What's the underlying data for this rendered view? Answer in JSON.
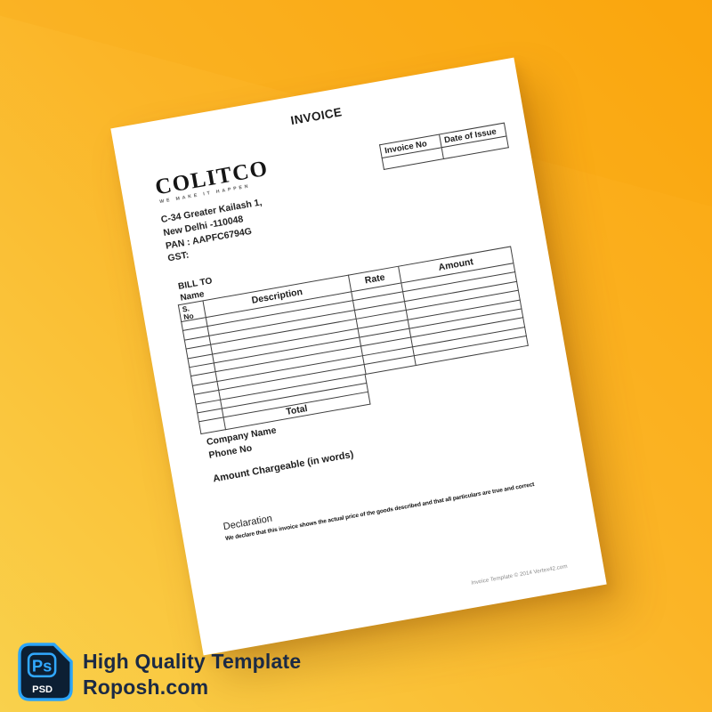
{
  "colors": {
    "background_orange": "#fba70f",
    "background_yellow": "#f9d14c",
    "paper": "#ffffff",
    "badge_bg": "#0c1f33",
    "badge_accent": "#31a8ff",
    "promo_text": "#1b2a45"
  },
  "invoice": {
    "title": "INVOICE",
    "meta": {
      "invoice_no": "Invoice No",
      "date_of_issue": "Date of Issue"
    },
    "logo": {
      "name": "COLITCO",
      "tagline": "WE MAKE IT HAPPEN"
    },
    "address_lines": [
      "C-34 Greater Kailash 1,",
      "New Delhi -110048",
      "PAN : AAPFC6794G",
      "GST:"
    ],
    "bill_to_label": "BILL TO",
    "bill_to_name_label": "Name",
    "table": {
      "sno_line1": "S.",
      "sno_line2": "No",
      "description": "Description",
      "rate": "Rate",
      "amount": "Amount",
      "total_label": "Total",
      "empty_full_rows": 9,
      "empty_partial_rows": 2
    },
    "company_name_label": "Company Name",
    "phone_label": "Phone No",
    "amount_in_words_label": "Amount Chargeable (in words)",
    "declaration_heading": "Declaration",
    "declaration_body": "We declare that this invoice shows the actual price of the goods described and that all particulars are true and correct",
    "credit": "Invoice Template © 2014 Vertex42.com"
  },
  "promo": {
    "app_abbr": "Ps",
    "format_label": "PSD",
    "line1": "High Quality Template",
    "line2": "Roposh.com"
  }
}
